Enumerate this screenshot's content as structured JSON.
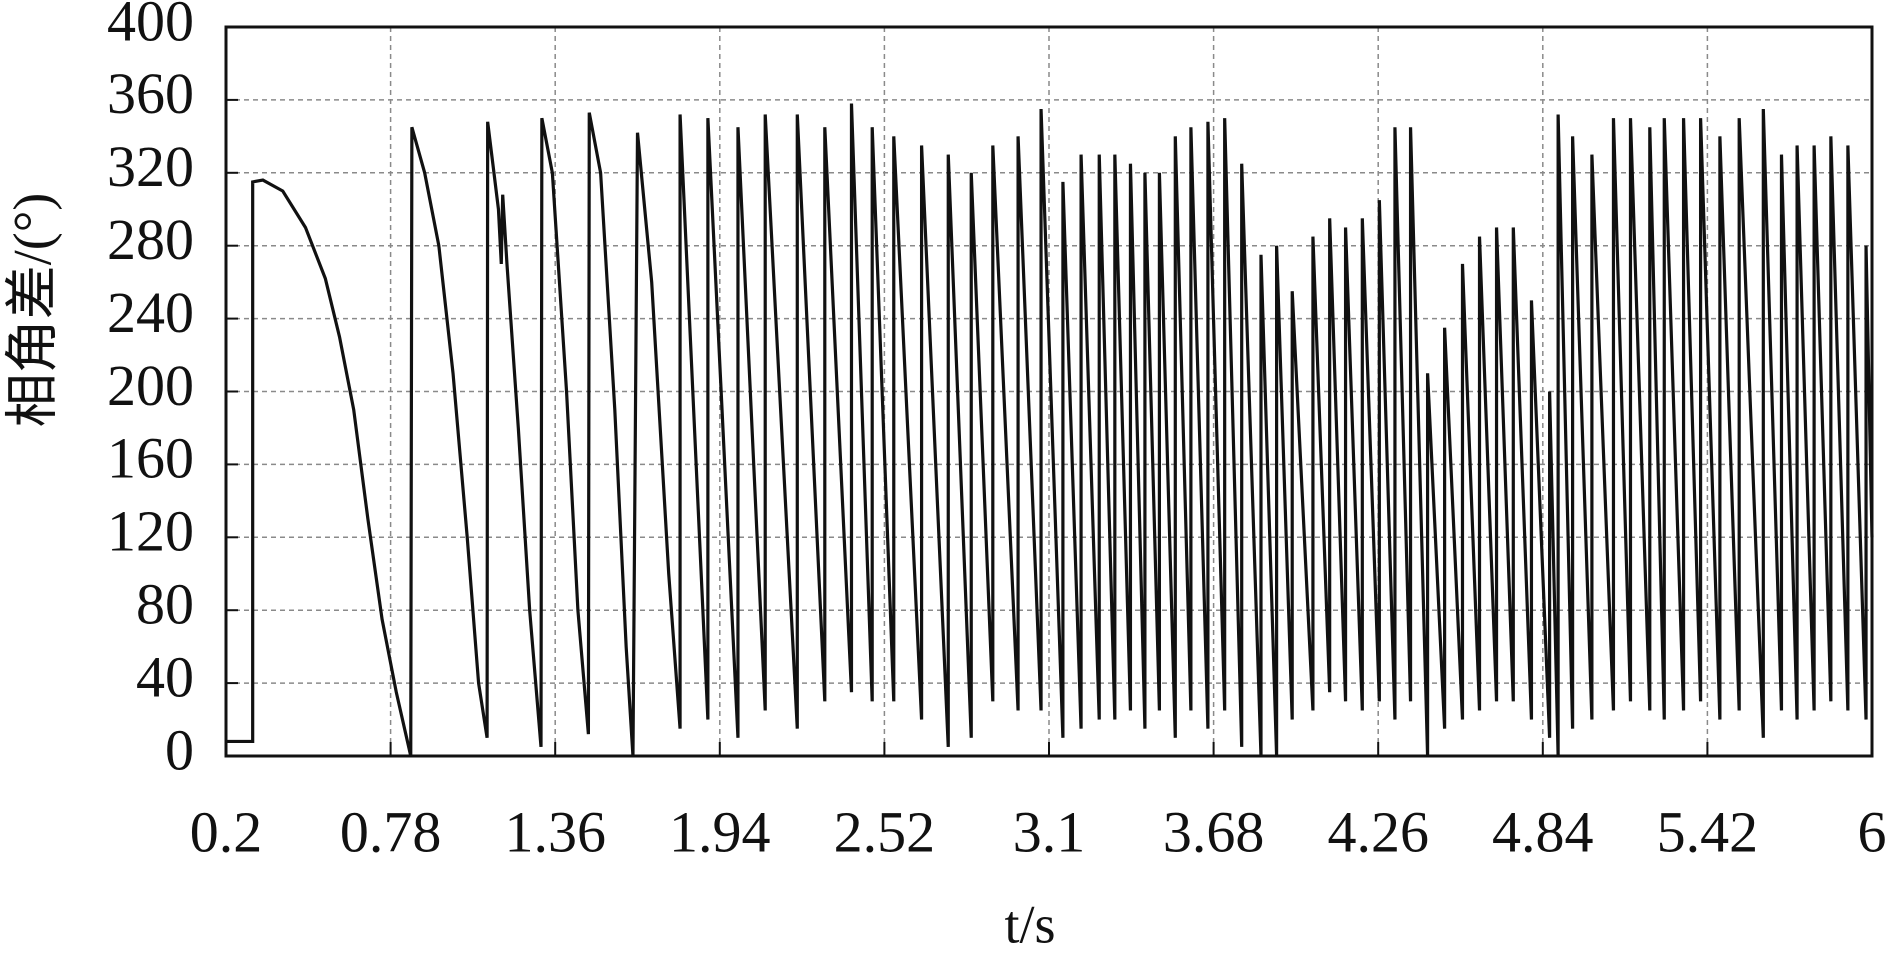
{
  "chart_data": {
    "type": "line",
    "x_label": "t/s",
    "y_label": "相角差/(°)",
    "grid": true,
    "xlim": [
      0.2,
      6
    ],
    "xticks": [
      0.2,
      0.78,
      1.36,
      1.94,
      2.52,
      3.1,
      3.68,
      4.26,
      4.84,
      5.42,
      6
    ],
    "ylim": [
      0,
      400
    ],
    "yticks": [
      0,
      40,
      80,
      120,
      160,
      200,
      240,
      280,
      320,
      360,
      400
    ],
    "series": [
      {
        "color": "#111111",
        "x": [
          0.2,
          0.294,
          0.294,
          0.33,
          0.4,
          0.48,
          0.55,
          0.6,
          0.65,
          0.7,
          0.75,
          0.8,
          0.851,
          0.855,
          0.9,
          0.95,
          1.0,
          1.05,
          1.09,
          1.12,
          1.122,
          1.16,
          1.17,
          1.175,
          1.19,
          1.23,
          1.27,
          1.31,
          1.313,
          1.35,
          1.4,
          1.44,
          1.477,
          1.48,
          1.52,
          1.57,
          1.61,
          1.634,
          1.65,
          1.7,
          1.76,
          1.8,
          1.8,
          1.898,
          1.898,
          2.004,
          2.004,
          2.1,
          2.1,
          2.213,
          2.213,
          2.31,
          2.31,
          2.404,
          2.404,
          2.477,
          2.477,
          2.553,
          2.553,
          2.651,
          2.651,
          2.745,
          2.745,
          2.826,
          2.826,
          2.902,
          2.902,
          2.991,
          2.991,
          3.072,
          3.072,
          3.149,
          3.149,
          3.213,
          3.213,
          3.277,
          3.277,
          3.332,
          3.332,
          3.387,
          3.387,
          3.438,
          3.438,
          3.489,
          3.489,
          3.545,
          3.545,
          3.6,
          3.6,
          3.66,
          3.66,
          3.719,
          3.719,
          3.779,
          3.779,
          3.847,
          3.847,
          3.902,
          3.902,
          3.957,
          3.957,
          4.03,
          4.03,
          4.089,
          4.089,
          4.145,
          4.145,
          4.204,
          4.204,
          4.264,
          4.264,
          4.319,
          4.319,
          4.374,
          4.374,
          4.434,
          4.434,
          4.494,
          4.494,
          4.557,
          4.557,
          4.617,
          4.617,
          4.677,
          4.677,
          4.736,
          4.736,
          4.8,
          4.8,
          4.864,
          4.864,
          4.894,
          4.894,
          4.945,
          4.945,
          5.013,
          5.013,
          5.089,
          5.089,
          5.149,
          5.149,
          5.217,
          5.217,
          5.268,
          5.268,
          5.336,
          5.336,
          5.396,
          5.396,
          5.464,
          5.464,
          5.532,
          5.532,
          5.617,
          5.617,
          5.681,
          5.681,
          5.736,
          5.736,
          5.796,
          5.796,
          5.855,
          5.855,
          5.915,
          5.915,
          5.979,
          5.979,
          6
        ],
        "values": [
          8,
          8,
          315,
          316,
          310,
          290,
          262,
          230,
          190,
          130,
          75,
          35,
          0,
          345,
          320,
          280,
          210,
          120,
          40,
          10,
          348,
          300,
          270,
          308,
          270,
          180,
          80,
          5,
          350,
          320,
          200,
          80,
          12,
          353,
          320,
          190,
          60,
          0,
          342,
          260,
          100,
          15,
          352,
          20,
          350,
          10,
          345,
          25,
          352,
          15,
          352,
          30,
          345,
          35,
          358,
          30,
          345,
          30,
          340,
          20,
          335,
          5,
          330,
          10,
          320,
          30,
          335,
          25,
          340,
          25,
          355,
          10,
          315,
          15,
          330,
          20,
          330,
          20,
          330,
          25,
          325,
          15,
          320,
          25,
          320,
          10,
          340,
          25,
          345,
          15,
          348,
          25,
          350,
          5,
          325,
          0,
          275,
          0,
          280,
          20,
          255,
          25,
          285,
          35,
          295,
          30,
          290,
          25,
          295,
          30,
          305,
          20,
          345,
          30,
          345,
          0,
          210,
          15,
          235,
          20,
          270,
          25,
          285,
          30,
          290,
          30,
          290,
          20,
          250,
          10,
          200,
          0,
          352,
          15,
          340,
          20,
          330,
          25,
          350,
          30,
          350,
          25,
          345,
          20,
          350,
          25,
          350,
          30,
          350,
          20,
          340,
          25,
          350,
          10,
          355,
          25,
          330,
          20,
          335,
          25,
          335,
          30,
          340,
          25,
          335,
          20,
          280,
          120
        ]
      }
    ]
  }
}
